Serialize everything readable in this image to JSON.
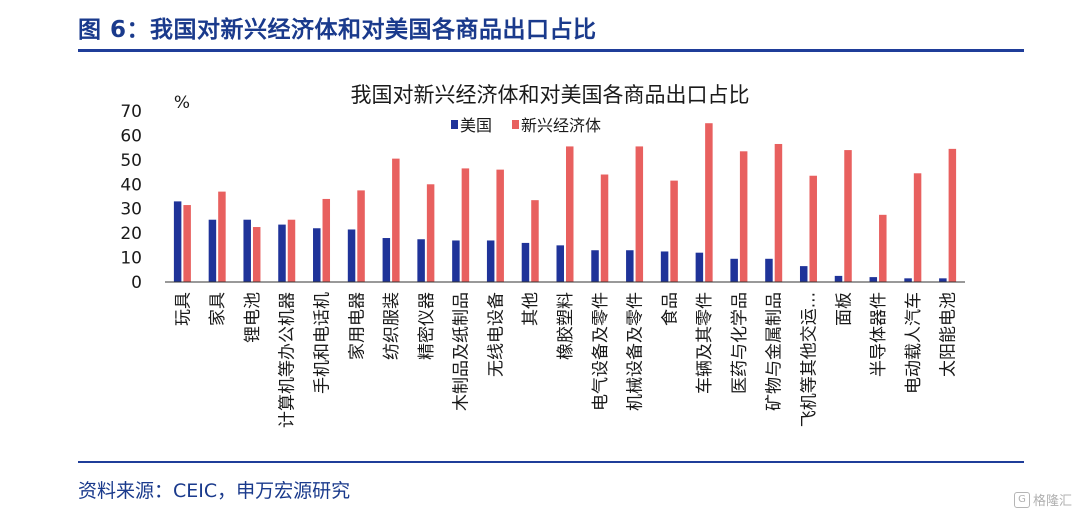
{
  "figure_title": "图 6：我国对新兴经济体和对美国各商品出口占比",
  "source": "资料来源：CEIC，申万宏源研究",
  "watermark": "格隆汇",
  "colors": {
    "us": "#1f3399",
    "emerging": "#e8605f",
    "accent": "#1f3d99"
  },
  "chart_data": {
    "type": "bar",
    "title": "我国对新兴经济体和对美国各商品出口占比",
    "ylabel": "%",
    "xlabel": "",
    "ylim": [
      0,
      70
    ],
    "yticks": [
      0,
      10,
      20,
      30,
      40,
      50,
      60,
      70
    ],
    "grid": false,
    "legend": "top-center",
    "categories": [
      "玩具",
      "家具",
      "锂电池",
      "计算机等办公机器",
      "手机和电话机",
      "家用电器",
      "纺织服装",
      "精密仪器",
      "木制品及纸制品",
      "无线电设备",
      "其他",
      "橡胶塑料",
      "电气设备及零件",
      "机械设备及零件",
      "食品",
      "车辆及其零件",
      "医药与化学品",
      "矿物与金属制品",
      "飞机等其他交运...",
      "面板",
      "半导体器件",
      "电动载人汽车",
      "太阳能电池"
    ],
    "series": [
      {
        "name": "美国",
        "values": [
          33,
          25.5,
          25.5,
          23.5,
          22,
          21.5,
          18,
          17.5,
          17,
          17,
          16,
          15,
          13,
          13,
          12.5,
          12,
          9.5,
          9.5,
          6.5,
          2.5,
          2,
          1.5,
          1.5
        ]
      },
      {
        "name": "新兴经济体",
        "values": [
          31.5,
          37,
          22.5,
          25.5,
          34,
          37.5,
          50.5,
          40,
          46.5,
          46,
          33.5,
          55.5,
          44,
          55.5,
          41.5,
          65,
          53.5,
          56.5,
          43.5,
          54,
          27.5,
          44.5,
          54.5
        ]
      }
    ]
  }
}
